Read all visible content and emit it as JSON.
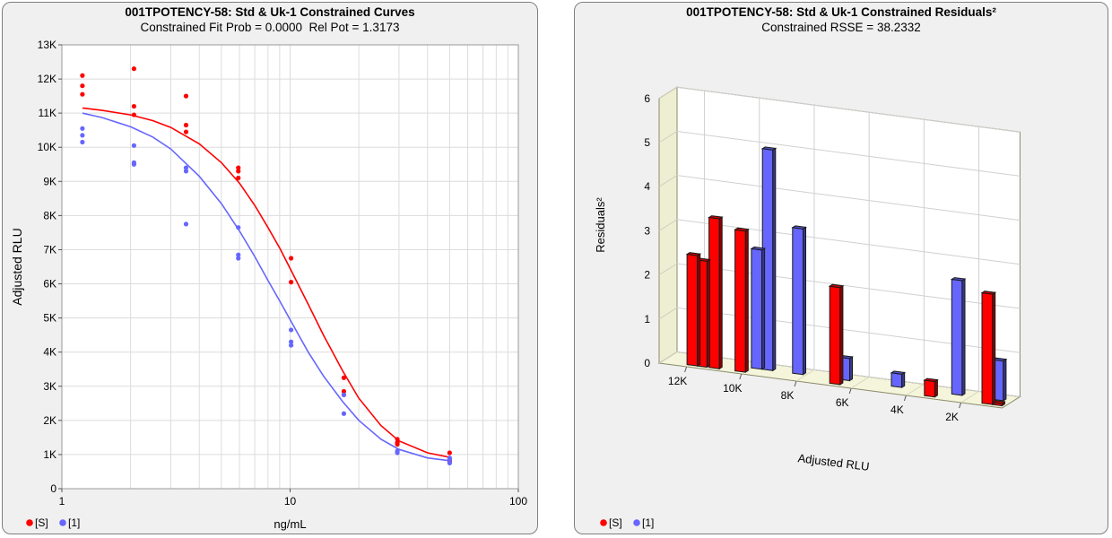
{
  "left_panel": {
    "title": "001TPOTENCY-58: Std & Uk-1 Constrained Curves",
    "subtitle": "Constrained Fit Prob = 0.0000  Rel Pot = 1.3173"
  },
  "right_panel": {
    "title": "001TPOTENCY-58: Std & Uk-1  Constrained Residuals²",
    "subtitle": "Constrained RSSE = 38.2332"
  },
  "chart_data": [
    {
      "type": "scatter",
      "title": "001TPOTENCY-58: Std & Uk-1 Constrained Curves",
      "subtitle": "Constrained Fit Prob = 0.0000  Rel Pot = 1.3173",
      "xlabel": "ng/mL",
      "ylabel": "Adjusted RLU",
      "x_scale": "log",
      "xlim": [
        1,
        100
      ],
      "ylim": [
        0,
        13000
      ],
      "x_ticks": [
        1,
        10,
        100
      ],
      "x_tick_labels": [
        "1",
        "10",
        "100"
      ],
      "y_ticks": [
        0,
        1000,
        2000,
        3000,
        4000,
        5000,
        6000,
        7000,
        8000,
        9000,
        10000,
        11000,
        12000,
        13000
      ],
      "y_tick_labels": [
        "0",
        "1K",
        "2K",
        "3K",
        "4K",
        "5K",
        "6K",
        "7K",
        "8K",
        "9K",
        "10K",
        "11K",
        "12K",
        "13K"
      ],
      "grid": true,
      "legend_position": "bottom-left",
      "series": [
        {
          "name": "[S]",
          "color": "#ff0000",
          "points": [
            [
              1.23,
              12100
            ],
            [
              1.23,
              11800
            ],
            [
              1.23,
              11550
            ],
            [
              2.07,
              12300
            ],
            [
              2.07,
              11200
            ],
            [
              2.07,
              10950
            ],
            [
              3.5,
              11500
            ],
            [
              3.5,
              10650
            ],
            [
              3.5,
              10450
            ],
            [
              5.93,
              9400
            ],
            [
              5.93,
              9300
            ],
            [
              5.93,
              9100
            ],
            [
              10.1,
              6750
            ],
            [
              10.1,
              6050
            ],
            [
              17.2,
              3250
            ],
            [
              17.2,
              2850
            ],
            [
              17.2,
              2750
            ],
            [
              29.5,
              1450
            ],
            [
              29.5,
              1350
            ],
            [
              29.5,
              1300
            ],
            [
              50.0,
              1050
            ],
            [
              50.0,
              850
            ],
            [
              50.0,
              800
            ]
          ],
          "curve": [
            [
              1.23,
              11150
            ],
            [
              1.5,
              11080
            ],
            [
              2,
              10950
            ],
            [
              2.5,
              10780
            ],
            [
              3,
              10580
            ],
            [
              4,
              10100
            ],
            [
              5,
              9550
            ],
            [
              6,
              8950
            ],
            [
              7,
              8300
            ],
            [
              8,
              7650
            ],
            [
              9,
              7050
            ],
            [
              10,
              6450
            ],
            [
              12,
              5400
            ],
            [
              14,
              4500
            ],
            [
              17,
              3450
            ],
            [
              20,
              2650
            ],
            [
              25,
              1850
            ],
            [
              30,
              1400
            ],
            [
              40,
              1050
            ],
            [
              50,
              920
            ]
          ]
        },
        {
          "name": "[1]",
          "color": "#6666ff",
          "points": [
            [
              1.23,
              10550
            ],
            [
              1.23,
              10350
            ],
            [
              1.23,
              10150
            ],
            [
              2.07,
              10050
            ],
            [
              2.07,
              9550
            ],
            [
              2.07,
              9500
            ],
            [
              3.5,
              9400
            ],
            [
              3.5,
              9300
            ],
            [
              3.5,
              7750
            ],
            [
              5.93,
              7650
            ],
            [
              5.93,
              6850
            ],
            [
              5.93,
              6750
            ],
            [
              10.1,
              4650
            ],
            [
              10.1,
              4300
            ],
            [
              10.1,
              4200
            ],
            [
              17.2,
              2750
            ],
            [
              17.2,
              2200
            ],
            [
              29.5,
              1100
            ],
            [
              29.5,
              1050
            ],
            [
              50.0,
              900
            ],
            [
              50.0,
              850
            ],
            [
              50.0,
              750
            ]
          ],
          "curve": [
            [
              1.23,
              11000
            ],
            [
              1.5,
              10870
            ],
            [
              2,
              10600
            ],
            [
              2.5,
              10300
            ],
            [
              3,
              9950
            ],
            [
              4,
              9150
            ],
            [
              5,
              8350
            ],
            [
              6,
              7550
            ],
            [
              7,
              6800
            ],
            [
              8,
              6100
            ],
            [
              9,
              5500
            ],
            [
              10,
              4950
            ],
            [
              12,
              4000
            ],
            [
              14,
              3300
            ],
            [
              17,
              2550
            ],
            [
              20,
              2000
            ],
            [
              25,
              1450
            ],
            [
              30,
              1150
            ],
            [
              40,
              900
            ],
            [
              50,
              820
            ]
          ]
        }
      ]
    },
    {
      "type": "bar",
      "title": "001TPOTENCY-58: Std & Uk-1  Constrained Residuals²",
      "subtitle": "Constrained RSSE = 38.2332",
      "xlabel": "Adjusted RLU",
      "ylabel": "Residuals²",
      "three_d": true,
      "x_reversed": true,
      "xlim": [
        13000,
        500
      ],
      "ylim": [
        0,
        6
      ],
      "x_ticks": [
        12000,
        10000,
        8000,
        6000,
        4000,
        2000
      ],
      "x_tick_labels": [
        "12K",
        "10K",
        "8K",
        "6K",
        "4K",
        "2K"
      ],
      "y_ticks": [
        0,
        1,
        2,
        3,
        4,
        5,
        6
      ],
      "y_tick_labels": [
        "0",
        "1",
        "2",
        "3",
        "4",
        "5",
        "6"
      ],
      "grid": true,
      "legend_position": "bottom-left",
      "series": [
        {
          "name": "[S]",
          "color": "#ff0000",
          "points": [
            [
              11900,
              2.5
            ],
            [
              11550,
              2.4
            ],
            [
              11100,
              3.4
            ],
            [
              10150,
              3.2
            ],
            [
              6700,
              2.2
            ],
            [
              3250,
              0.35
            ],
            [
              1150,
              2.5
            ],
            [
              800,
              0.05
            ]
          ]
        },
        {
          "name": "[1]",
          "color": "#6666ff",
          "points": [
            [
              9800,
              2.7
            ],
            [
              9400,
              5.0
            ],
            [
              8300,
              3.3
            ],
            [
              6600,
              0.5
            ],
            [
              4700,
              0.3
            ],
            [
              2500,
              2.6
            ],
            [
              1000,
              0.9
            ]
          ]
        }
      ]
    }
  ]
}
